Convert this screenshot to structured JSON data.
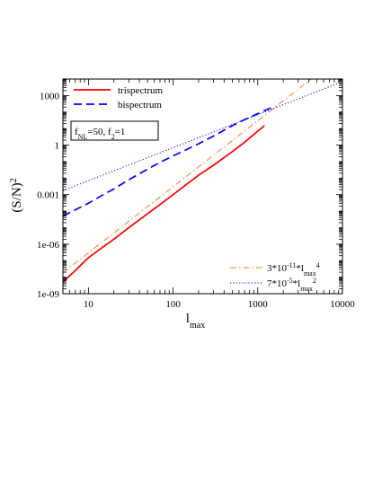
{
  "chart_data": {
    "type": "line",
    "x_scale": "log",
    "y_scale": "log",
    "xlim": [
      5,
      10000
    ],
    "ylim": [
      1e-09,
      10000
    ],
    "xlabel_base": "l",
    "xlabel_sub": "max",
    "ylabel_base": "(S/N)",
    "ylabel_sup": "2",
    "x_ticks": [
      {
        "value": 10,
        "label": "10"
      },
      {
        "value": 100,
        "label": "100"
      },
      {
        "value": 1000,
        "label": "1000"
      },
      {
        "value": 10000,
        "label": "10000"
      }
    ],
    "y_ticks": [
      {
        "value": 1e-09,
        "label": "1e-09"
      },
      {
        "value": 1e-06,
        "label": "1e-06"
      },
      {
        "value": 0.001,
        "label": "0.001"
      },
      {
        "value": 1,
        "label": "1"
      },
      {
        "value": 1000,
        "label": "1000"
      }
    ],
    "annotation": {
      "parts": [
        {
          "t": "f",
          "s": "normal"
        },
        {
          "t": "NL",
          "s": "sub"
        },
        {
          "t": "=50, f",
          "s": "normal"
        },
        {
          "t": "2",
          "s": "sub"
        },
        {
          "t": "=1",
          "s": "normal"
        }
      ]
    },
    "series": [
      {
        "name": "trispectrum",
        "color": "#ff0000",
        "style": "solid",
        "x": [
          5,
          6,
          7,
          8,
          10,
          15,
          20,
          30,
          50,
          70,
          100,
          200,
          300,
          500,
          700,
          1000,
          1200
        ],
        "y": [
          5e-09,
          1.2e-08,
          2.5e-08,
          5e-08,
          1.5e-07,
          7e-07,
          2e-06,
          1e-05,
          7e-05,
          0.00025,
          0.001,
          0.015,
          0.06,
          0.4,
          1.5,
          7,
          15
        ]
      },
      {
        "name": "bispectrum",
        "color": "#0000ff",
        "style": "dashed",
        "x": [
          5,
          7,
          10,
          15,
          20,
          30,
          50,
          70,
          100,
          200,
          300,
          500,
          700,
          1000,
          1500
        ],
        "y": [
          5e-05,
          0.00012,
          0.0003,
          0.001,
          0.0022,
          0.008,
          0.035,
          0.09,
          0.22,
          1.2,
          3.5,
          15,
          35,
          80,
          200
        ]
      },
      {
        "name": "3*10^-11*lmax^4",
        "label_parts": [
          {
            "t": "3*10",
            "s": "normal"
          },
          {
            "t": "-11",
            "s": "sup"
          },
          {
            "t": "*l",
            "s": "normal"
          },
          {
            "t": "max",
            "s": "sub"
          },
          {
            "t": "4",
            "s": "sup"
          }
        ],
        "color": "#f08030",
        "style": "dashdot",
        "coef": 3e-11,
        "power": 4
      },
      {
        "name": "7*10^-5*lmax^2",
        "label_parts": [
          {
            "t": "7*10",
            "s": "normal"
          },
          {
            "t": "-5",
            "s": "sup"
          },
          {
            "t": "*l",
            "s": "normal"
          },
          {
            "t": "max",
            "s": "sub"
          },
          {
            "t": "2",
            "s": "sup"
          }
        ],
        "color": "#0000ff",
        "style": "dotted",
        "coef": 7e-05,
        "power": 2
      }
    ],
    "legend_top": [
      "trispectrum",
      "bispectrum"
    ],
    "legend_bottom": [
      "3*10^-11*lmax^4",
      "7*10^-5*lmax^2"
    ],
    "legend_top_placement": "top-left",
    "legend_bottom_placement": "bottom-right",
    "grid": false
  }
}
